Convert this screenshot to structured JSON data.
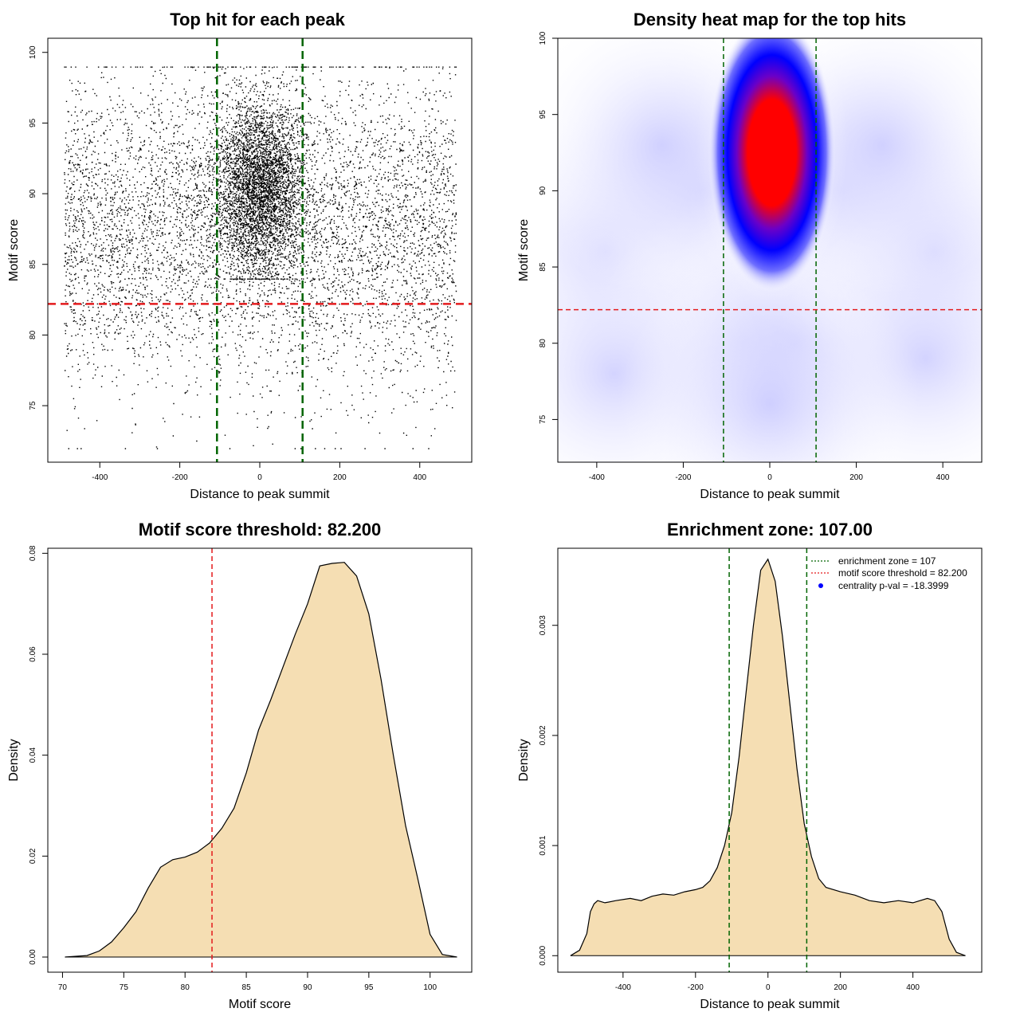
{
  "chart_data": [
    {
      "type": "scatter",
      "title": "Top hit for each peak",
      "xlabel": "Distance to peak summit",
      "ylabel": "Motif score",
      "xlim": [
        -530,
        530
      ],
      "ylim": [
        71,
        101
      ],
      "xticks": [
        "-400",
        "-200",
        "0",
        "200",
        "400"
      ],
      "xtick_values": [
        -400,
        -200,
        0,
        200,
        400
      ],
      "yticks": [
        "75",
        "80",
        "85",
        "90",
        "95",
        "100"
      ],
      "ytick_values": [
        75,
        80,
        85,
        90,
        95,
        100
      ],
      "point_color": "#000000",
      "points_approx_count": 10000,
      "x_range": [
        -490,
        490
      ],
      "y_range": [
        72,
        99
      ],
      "vlines": [
        -107,
        107
      ],
      "vline_color": "#006400",
      "hline": 82.2,
      "hline_color": "#e41a1c"
    },
    {
      "type": "heatmap",
      "title": "Density heat map for the top hits",
      "xlabel": "Distance to peak summit",
      "ylabel": "Motif score",
      "xlim": [
        -490,
        490
      ],
      "ylim": [
        72.2,
        100
      ],
      "xticks": [
        "-400",
        "-200",
        "0",
        "200",
        "400"
      ],
      "xtick_values": [
        -400,
        -200,
        0,
        200,
        400
      ],
      "yticks": [
        "75",
        "80",
        "85",
        "90",
        "95",
        "100"
      ],
      "ytick_values": [
        75,
        80,
        85,
        90,
        95,
        100
      ],
      "colors": [
        "#ffffff",
        "#0000ff",
        "#ff0000"
      ],
      "peak_center": [
        5,
        92.5
      ],
      "vlines": [
        -107,
        107
      ],
      "vline_color": "#006400",
      "hline": 82.2,
      "hline_color": "#e41a1c"
    },
    {
      "type": "area",
      "title": "Motif score threshold: 82.200",
      "xlabel": "Motif score",
      "ylabel": "Density",
      "xlim": [
        68.8,
        103.4
      ],
      "ylim": [
        -0.003,
        0.081
      ],
      "xticks": [
        "70",
        "75",
        "80",
        "85",
        "90",
        "95",
        "100"
      ],
      "xtick_values": [
        70,
        75,
        80,
        85,
        90,
        95,
        100
      ],
      "yticks": [
        "0.00",
        "0.02",
        "0.04",
        "0.06",
        "0.08"
      ],
      "ytick_values": [
        0,
        0.02,
        0.04,
        0.06,
        0.08
      ],
      "fill_color": "#f5deb3",
      "x": [
        70.2,
        72,
        73,
        74,
        75,
        76,
        77,
        78,
        79,
        80,
        81,
        82,
        83,
        84,
        85,
        86,
        87,
        88,
        89,
        90,
        91,
        92,
        93,
        94,
        95,
        96,
        97,
        98,
        99,
        100,
        101,
        102.2
      ],
      "y": [
        0,
        0.0003,
        0.0012,
        0.003,
        0.0058,
        0.009,
        0.0137,
        0.0178,
        0.0193,
        0.0198,
        0.0208,
        0.0226,
        0.0255,
        0.0295,
        0.0365,
        0.045,
        0.051,
        0.0575,
        0.064,
        0.07,
        0.0775,
        0.078,
        0.0782,
        0.0755,
        0.068,
        0.055,
        0.04,
        0.026,
        0.0155,
        0.0045,
        0.0005,
        0
      ],
      "vline": 82.2,
      "vline_color": "#e41a1c"
    },
    {
      "type": "area",
      "title": "Enrichment zone: 107.00",
      "xlabel": "Distance to peak summit",
      "ylabel": "Density",
      "xlim": [
        -580,
        590
      ],
      "ylim": [
        -0.00015,
        0.0037
      ],
      "xticks": [
        "-400",
        "-200",
        "0",
        "200",
        "400"
      ],
      "xtick_values": [
        -400,
        -200,
        0,
        200,
        400
      ],
      "yticks": [
        "0.000",
        "0.001",
        "0.002",
        "0.003"
      ],
      "ytick_values": [
        0,
        0.001,
        0.002,
        0.003
      ],
      "fill_color": "#f5deb3",
      "x": [
        -545,
        -520,
        -500,
        -490,
        -480,
        -470,
        -450,
        -420,
        -380,
        -350,
        -320,
        -290,
        -260,
        -230,
        -200,
        -180,
        -160,
        -140,
        -120,
        -100,
        -80,
        -60,
        -40,
        -20,
        0,
        20,
        40,
        60,
        80,
        100,
        120,
        140,
        160,
        200,
        240,
        280,
        320,
        360,
        400,
        440,
        460,
        480,
        500,
        520,
        545
      ],
      "y": [
        0,
        5e-05,
        0.0002,
        0.0004,
        0.00047,
        0.0005,
        0.00048,
        0.0005,
        0.00052,
        0.0005,
        0.00054,
        0.00056,
        0.00055,
        0.00058,
        0.0006,
        0.00062,
        0.00068,
        0.0008,
        0.001,
        0.0013,
        0.0018,
        0.0024,
        0.003,
        0.0035,
        0.0036,
        0.0034,
        0.0029,
        0.0023,
        0.0017,
        0.0012,
        0.0009,
        0.0007,
        0.00062,
        0.00058,
        0.00055,
        0.0005,
        0.00048,
        0.0005,
        0.00048,
        0.00052,
        0.0005,
        0.0004,
        0.00015,
        3e-05,
        0
      ],
      "vlines": [
        -107,
        107
      ],
      "vline_color": "#006400",
      "legend": {
        "position": "top-right",
        "entries": [
          {
            "label": "enrichment zone = 107",
            "color": "#006400",
            "style": "dotted-line"
          },
          {
            "label": "motif score threshold = 82.200",
            "color": "#e41a1c",
            "style": "dotted-line"
          },
          {
            "label": "centrality p-val = -18.3999",
            "color": "#0000ff",
            "style": "point"
          }
        ]
      }
    }
  ]
}
